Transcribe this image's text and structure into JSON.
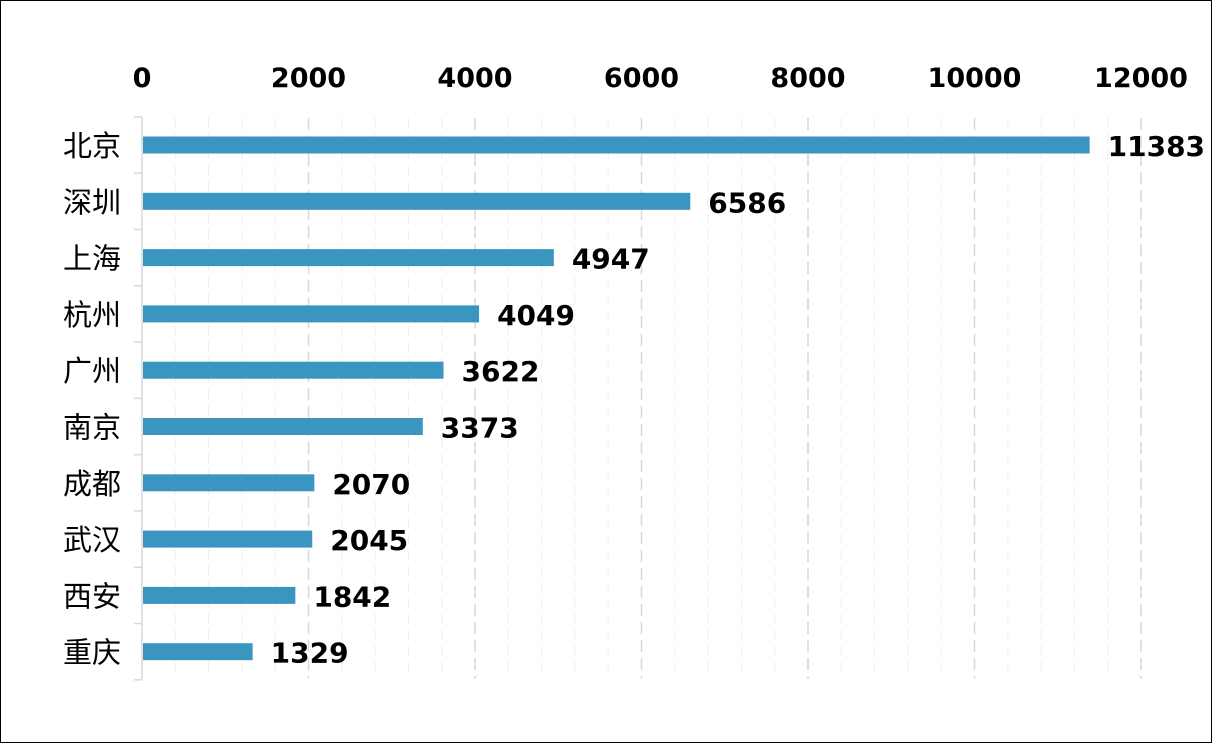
{
  "chart_data": {
    "type": "bar",
    "orientation": "horizontal",
    "title": "",
    "xlabel": "",
    "ylabel": "",
    "categories": [
      "北京",
      "深圳",
      "上海",
      "杭州",
      "广州",
      "南京",
      "成都",
      "武汉",
      "西安",
      "重庆"
    ],
    "values": [
      11383,
      6586,
      4947,
      4049,
      3622,
      3373,
      2070,
      2045,
      1842,
      1329
    ],
    "value_labels": [
      "11383",
      "6586",
      "4947",
      "4049",
      "3622",
      "3373",
      "2070",
      "2045",
      "1842",
      "1329"
    ],
    "x_ticks": [
      "0",
      "2000",
      "4000",
      "6000",
      "8000",
      "10000",
      "12000"
    ],
    "xlim": [
      0,
      12000
    ],
    "x_axis_position": "top",
    "grid": true,
    "legend": "none",
    "bar_color": "#3a96c0",
    "grid_color": "#d9d9d9"
  }
}
